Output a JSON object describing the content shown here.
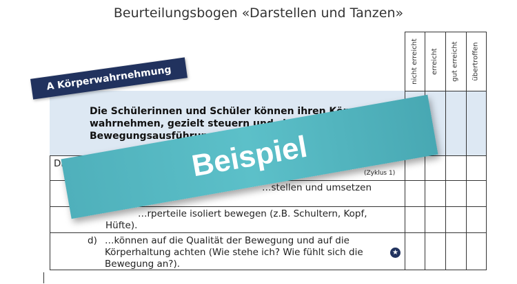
{
  "title": "Beurteilungsbogen «Darstellen und Tanzen»",
  "columns": [
    "nicht erreicht",
    "erreicht",
    "gut erreicht",
    "übertroffen"
  ],
  "section_tag": "A Körperwahrnehmung",
  "intro": "Die Schülerinnen und Schüler können ihren Körper wahrnehmen, gezielt steuern und sich in der Bewegungsausführung k…",
  "rows": [
    {
      "text": "Die Schü…",
      "note": "(Zyklus 1)"
    },
    {
      "text": "…stellen und umsetzen",
      "cont": "…)."
    },
    {
      "text": "…rperteile isoliert bewegen (z.B. Schultern, Kopf,",
      "cont": "Hüfte)."
    },
    {
      "label": "d)",
      "text": "…können auf die Qualität der Bewegung und auf die Körperhaltung achten (Wie stehe ich? Wie fühlt sich die Bewegung an?)."
    }
  ],
  "banner": "Beispiel",
  "icons": {
    "star": "star-icon"
  },
  "colors": {
    "tag": "#21325e",
    "banner": "#52b6c0",
    "intro_bg": "#dde8f3"
  }
}
